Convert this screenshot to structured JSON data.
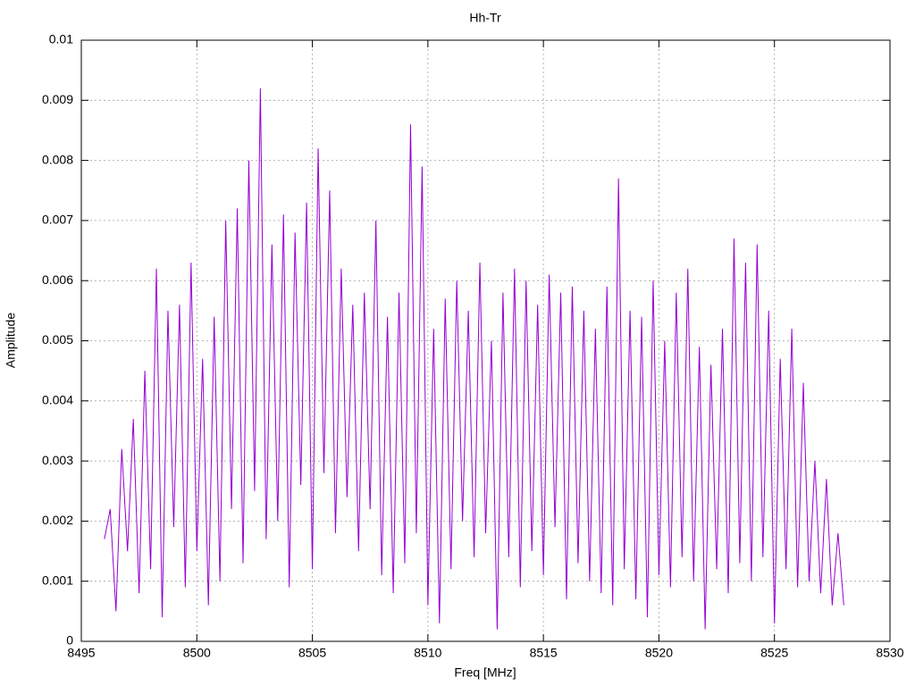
{
  "chart_data": {
    "type": "line",
    "title": "Hh-Tr",
    "x_label": "Freq [MHz]",
    "y_label": "Amplitude",
    "x": [
      8496,
      8496.25,
      8496.5,
      8496.75,
      8497,
      8497.25,
      8497.5,
      8497.75,
      8498,
      8498.25,
      8498.5,
      8498.75,
      8499,
      8499.25,
      8499.5,
      8499.75,
      8500,
      8500.25,
      8500.5,
      8500.75,
      8501,
      8501.25,
      8501.5,
      8501.75,
      8502,
      8502.25,
      8502.5,
      8502.75,
      8503,
      8503.25,
      8503.5,
      8503.75,
      8504,
      8504.25,
      8504.5,
      8504.75,
      8505,
      8505.25,
      8505.5,
      8505.75,
      8506,
      8506.25,
      8506.5,
      8506.75,
      8507,
      8507.25,
      8507.5,
      8507.75,
      8508,
      8508.25,
      8508.5,
      8508.75,
      8509,
      8509.25,
      8509.5,
      8509.75,
      8510,
      8510.25,
      8510.5,
      8510.75,
      8511,
      8511.25,
      8511.5,
      8511.75,
      8512,
      8512.25,
      8512.5,
      8512.75,
      8513,
      8513.25,
      8513.5,
      8513.75,
      8514,
      8514.25,
      8514.5,
      8514.75,
      8515,
      8515.25,
      8515.5,
      8515.75,
      8516,
      8516.25,
      8516.5,
      8516.75,
      8517,
      8517.25,
      8517.5,
      8517.75,
      8518,
      8518.25,
      8518.5,
      8518.75,
      8519,
      8519.25,
      8519.5,
      8519.75,
      8520,
      8520.25,
      8520.5,
      8520.75,
      8521,
      8521.25,
      8521.5,
      8521.75,
      8522,
      8522.25,
      8522.5,
      8522.75,
      8523,
      8523.25,
      8523.5,
      8523.75,
      8524,
      8524.25,
      8524.5,
      8524.75,
      8525,
      8525.25,
      8525.5,
      8525.75,
      8526,
      8526.25,
      8526.5,
      8526.75,
      8527,
      8527.25,
      8527.5,
      8527.75,
      8528
    ],
    "series": [
      {
        "color": "#9400d3",
        "values": [
          0.0017,
          0.0022,
          0.0005,
          0.0032,
          0.0015,
          0.0037,
          0.0008,
          0.0045,
          0.0012,
          0.0062,
          0.0004,
          0.0055,
          0.0019,
          0.0056,
          0.0009,
          0.0063,
          0.0015,
          0.0047,
          0.0006,
          0.0054,
          0.001,
          0.007,
          0.0022,
          0.0072,
          0.0013,
          0.008,
          0.0025,
          0.0092,
          0.0017,
          0.0066,
          0.002,
          0.0071,
          0.0009,
          0.0068,
          0.0026,
          0.0073,
          0.0012,
          0.0082,
          0.0028,
          0.0075,
          0.0018,
          0.0062,
          0.0024,
          0.0056,
          0.0015,
          0.0058,
          0.0022,
          0.007,
          0.0011,
          0.0054,
          0.0008,
          0.0058,
          0.0013,
          0.0086,
          0.0018,
          0.0079,
          0.0006,
          0.0052,
          0.0003,
          0.0057,
          0.0012,
          0.006,
          0.002,
          0.0055,
          0.0014,
          0.0063,
          0.0018,
          0.005,
          0.0002,
          0.0058,
          0.0014,
          0.0062,
          0.0009,
          0.006,
          0.0015,
          0.0056,
          0.0011,
          0.0061,
          0.0019,
          0.0058,
          0.0007,
          0.0059,
          0.0013,
          0.0055,
          0.001,
          0.0052,
          0.0008,
          0.0059,
          0.0006,
          0.0077,
          0.0012,
          0.0055,
          0.0007,
          0.0054,
          0.0004,
          0.006,
          0.0011,
          0.005,
          0.0009,
          0.0058,
          0.0014,
          0.0062,
          0.001,
          0.0049,
          0.0002,
          0.0046,
          0.0012,
          0.0052,
          0.0008,
          0.0067,
          0.0013,
          0.0063,
          0.001,
          0.0066,
          0.0014,
          0.0055,
          0.0003,
          0.0047,
          0.0012,
          0.0052,
          0.0009,
          0.0043,
          0.001,
          0.003,
          0.0008,
          0.0027,
          0.0006,
          0.0018,
          0.0006
        ]
      }
    ],
    "xlim": [
      8495,
      8530
    ],
    "xticks": [
      8495,
      8500,
      8505,
      8510,
      8515,
      8520,
      8525,
      8530
    ],
    "ylim": [
      0,
      0.01
    ],
    "yticks": [
      0,
      0.001,
      0.002,
      0.003,
      0.004,
      0.005,
      0.006,
      0.007,
      0.008,
      0.009,
      0.01
    ],
    "grid": true
  }
}
